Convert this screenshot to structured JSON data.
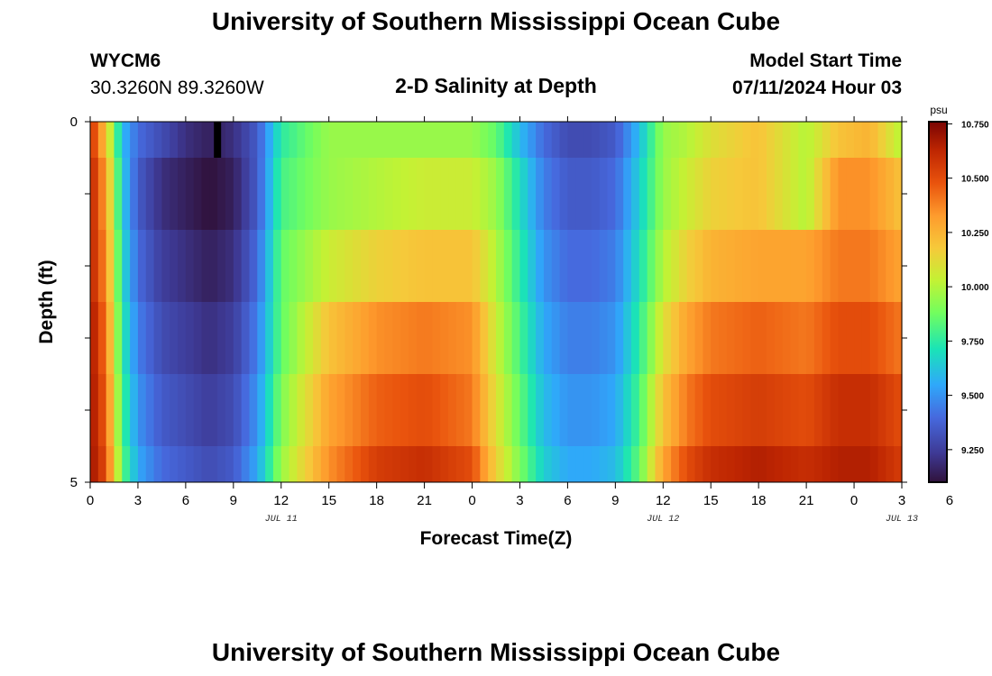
{
  "header": {
    "title": "University of Southern Mississippi Ocean Cube",
    "station_id": "WYCM6",
    "coordinates": "30.3260N  89.3260W",
    "model_start_label": "Model Start Time",
    "model_start_value": "07/11/2024 Hour 03"
  },
  "footer": {
    "title": "University of Southern Mississippi Ocean Cube"
  },
  "colors": {
    "low": "#30123b",
    "mid": "#a4fc3c",
    "high": "#7a0403"
  },
  "chart_data": {
    "type": "heatmap",
    "title": "2-D Salinity at Depth",
    "xlabel": "Forecast Time(Z)",
    "ylabel": "Depth (ft)",
    "colorbar_unit": "psu",
    "colorbar_ticks": [
      "10.750",
      "10.500",
      "10.250",
      "10.000",
      "9.750",
      "9.500",
      "9.250"
    ],
    "colorbar_range": [
      9.1,
      10.76
    ],
    "x_range_hours": [
      0,
      51
    ],
    "x_tick_labels": [
      "0",
      "3",
      "6",
      "9",
      "12",
      "15",
      "18",
      "21",
      "0",
      "3",
      "6",
      "9",
      "12",
      "15",
      "18",
      "21",
      "0",
      "3",
      "6"
    ],
    "date_labels": [
      {
        "text": "JUL 11",
        "hour": 12
      },
      {
        "text": "JUL 12",
        "hour": 36
      },
      {
        "text": "JUL 13",
        "hour": 51
      }
    ],
    "y_range_ft": [
      0,
      5
    ],
    "y_tick_labels": [
      "0",
      "5"
    ],
    "depth_layers_ft": [
      [
        0,
        0.5
      ],
      [
        0.5,
        1.5
      ],
      [
        1.5,
        2.5
      ],
      [
        2.5,
        3.5
      ],
      [
        3.5,
        4.5
      ],
      [
        4.5,
        5
      ]
    ],
    "time_knots_hours": [
      0,
      1,
      2,
      3,
      4.5,
      6,
      7.5,
      9,
      10.5,
      12,
      15,
      18,
      21,
      24,
      25.5,
      27,
      28.5,
      30,
      31.5,
      33,
      34.5,
      36,
      37.5,
      39,
      42,
      45,
      47,
      49,
      51
    ],
    "salinity_psu": [
      [
        10.6,
        10.2,
        9.6,
        9.4,
        9.3,
        9.2,
        9.15,
        9.2,
        9.35,
        9.75,
        9.95,
        9.95,
        9.95,
        9.95,
        9.85,
        9.6,
        9.4,
        9.3,
        9.3,
        9.35,
        9.6,
        9.95,
        10.0,
        10.1,
        10.2,
        10.0,
        10.2,
        10.25,
        10.0
      ],
      [
        10.65,
        10.3,
        9.65,
        9.35,
        9.2,
        9.15,
        9.1,
        9.15,
        9.35,
        9.8,
        9.95,
        10.0,
        10.05,
        10.05,
        9.95,
        9.7,
        9.45,
        9.35,
        9.35,
        9.4,
        9.65,
        9.95,
        10.05,
        10.15,
        10.2,
        10.0,
        10.35,
        10.35,
        10.2
      ],
      [
        10.65,
        10.35,
        9.7,
        9.4,
        9.25,
        9.2,
        9.15,
        9.2,
        9.4,
        9.85,
        10.05,
        10.15,
        10.2,
        10.2,
        10.0,
        9.75,
        9.5,
        9.4,
        9.4,
        9.45,
        9.7,
        10.0,
        10.15,
        10.25,
        10.3,
        10.3,
        10.4,
        10.4,
        10.3
      ],
      [
        10.7,
        10.4,
        9.75,
        9.45,
        9.3,
        9.25,
        9.2,
        9.25,
        9.45,
        9.85,
        10.2,
        10.35,
        10.4,
        10.35,
        10.05,
        9.8,
        9.55,
        9.45,
        9.45,
        9.5,
        9.75,
        10.1,
        10.3,
        10.4,
        10.45,
        10.4,
        10.5,
        10.5,
        10.4
      ],
      [
        10.7,
        10.45,
        9.8,
        9.5,
        9.35,
        9.3,
        9.25,
        9.3,
        9.5,
        9.9,
        10.3,
        10.45,
        10.5,
        10.4,
        10.1,
        9.85,
        9.6,
        9.5,
        9.5,
        9.55,
        9.8,
        10.2,
        10.4,
        10.5,
        10.55,
        10.5,
        10.6,
        10.6,
        10.5
      ],
      [
        10.7,
        10.5,
        9.85,
        9.55,
        9.4,
        9.35,
        9.3,
        9.35,
        9.55,
        9.95,
        10.35,
        10.55,
        10.6,
        10.5,
        10.15,
        9.9,
        9.65,
        9.55,
        9.55,
        9.6,
        9.85,
        10.3,
        10.5,
        10.6,
        10.65,
        10.6,
        10.65,
        10.65,
        10.55
      ]
    ],
    "missing_marker": {
      "hour": 8,
      "depth_ft": [
        0,
        0.5
      ]
    }
  }
}
